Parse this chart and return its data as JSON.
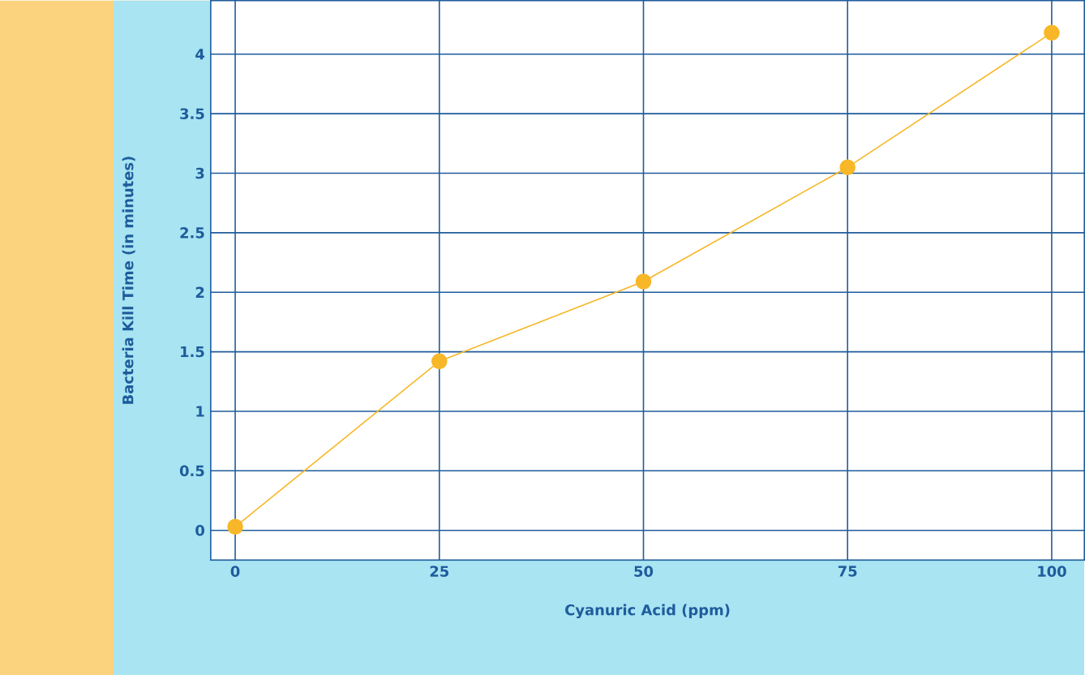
{
  "chart_data": {
    "type": "line",
    "xlabel": "Cyanuric Acid (ppm)",
    "ylabel": "Bacteria Kill Time (in minutes)",
    "x": [
      0,
      25,
      50,
      75,
      100
    ],
    "values": [
      0.03,
      1.42,
      2.09,
      3.05,
      4.18
    ],
    "color": "#f7b728",
    "marker": "circle",
    "grid": true,
    "xlim": [
      -3,
      104
    ],
    "ylim": [
      -0.25,
      4.45
    ],
    "xticks": [
      0,
      25,
      50,
      75,
      100
    ],
    "yticks": [
      0,
      0.5,
      1,
      1.5,
      2,
      2.5,
      3,
      3.5,
      4
    ]
  }
}
